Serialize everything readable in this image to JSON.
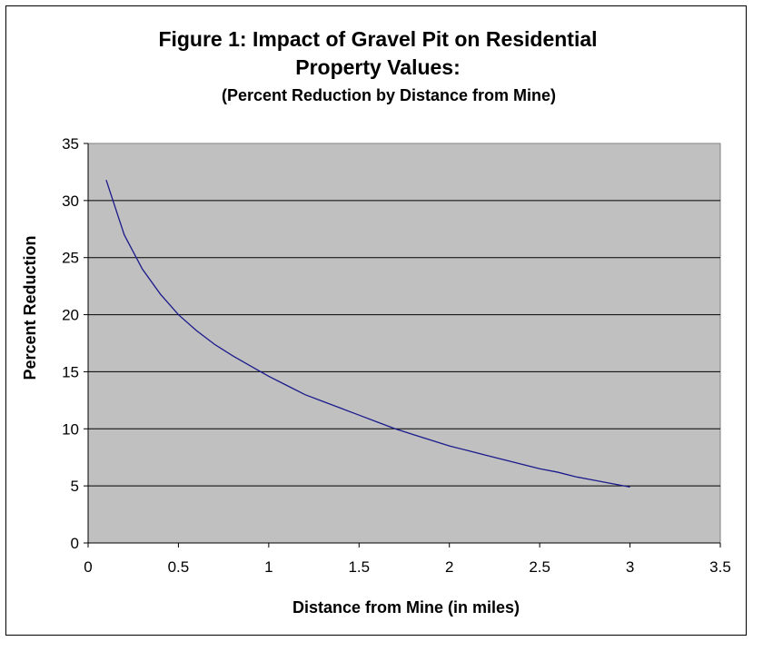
{
  "chart_data": {
    "type": "line",
    "title_line1": "Figure 1: Impact of Gravel Pit on Residential",
    "title_line2": "Property Values:",
    "subtitle": "(Percent Reduction by Distance from Mine)",
    "xlabel": "Distance from Mine (in miles)",
    "ylabel": "Percent Reduction",
    "xlim": [
      0,
      3.5
    ],
    "ylim": [
      0,
      35
    ],
    "xticks": [
      "0",
      "0.5",
      "1",
      "1.5",
      "2",
      "2.5",
      "3",
      "3.5"
    ],
    "yticks": [
      "0",
      "5",
      "10",
      "15",
      "20",
      "25",
      "30",
      "35"
    ],
    "grid": true,
    "plot_background": "#c0c0c0",
    "line_color": "#1a1a8c",
    "series": [
      {
        "x": [
          0.1,
          0.2,
          0.3,
          0.4,
          0.5,
          0.6,
          0.7,
          0.8,
          0.9,
          1.0,
          1.1,
          1.2,
          1.3,
          1.4,
          1.5,
          1.6,
          1.7,
          1.8,
          1.9,
          2.0,
          2.1,
          2.2,
          2.3,
          2.4,
          2.5,
          2.6,
          2.7,
          2.8,
          2.9,
          3.0
        ],
        "values": [
          31.8,
          27.0,
          24.0,
          21.8,
          20.0,
          18.6,
          17.4,
          16.4,
          15.5,
          14.6,
          13.8,
          13.0,
          12.4,
          11.8,
          11.2,
          10.6,
          10.0,
          9.5,
          9.0,
          8.5,
          8.1,
          7.7,
          7.3,
          6.9,
          6.5,
          6.2,
          5.8,
          5.5,
          5.2,
          4.9
        ]
      }
    ]
  }
}
